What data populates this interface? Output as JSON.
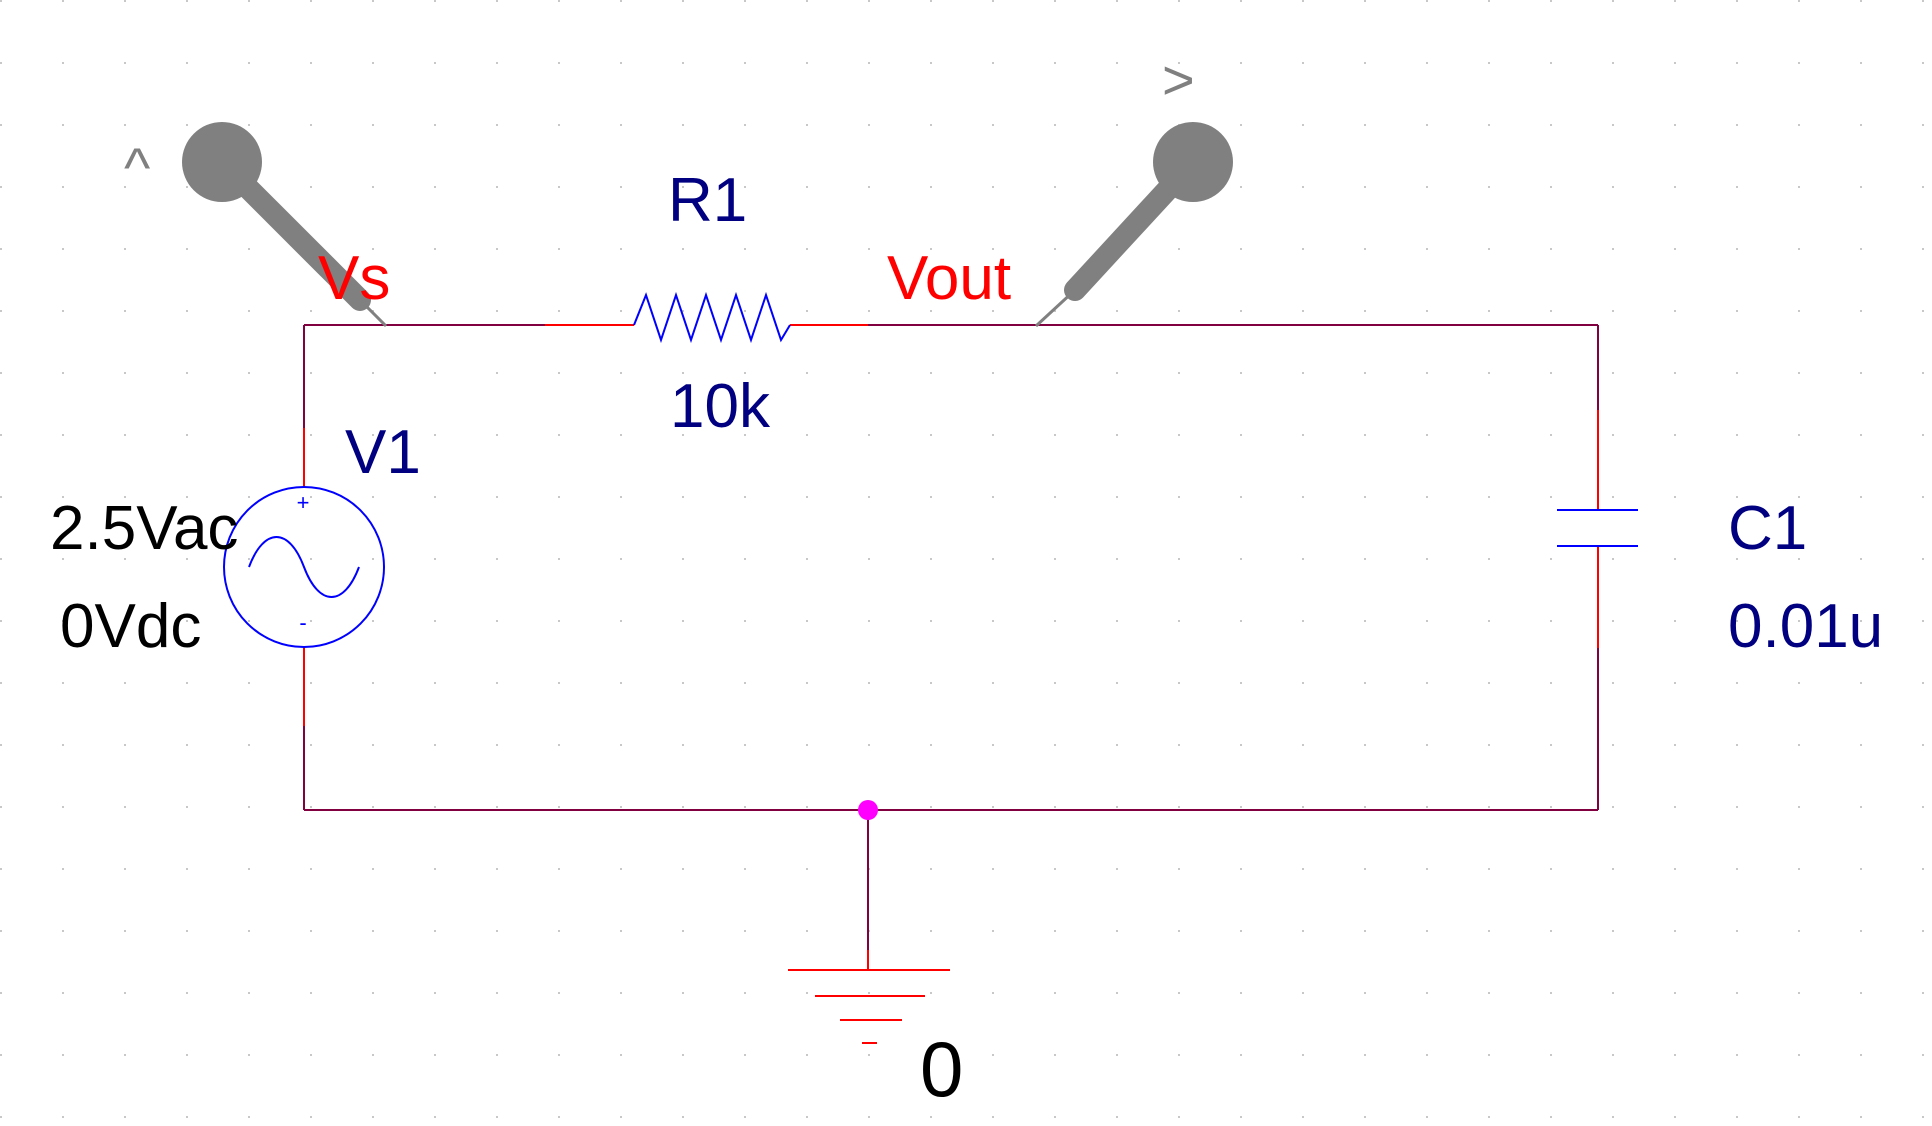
{
  "colors": {
    "wire": "#800040",
    "pin": "#ff0000",
    "part": "#0000ff",
    "part_label": "#000080",
    "net_label": "#ff0000",
    "probe": "#808080",
    "junction": "#ff00ff",
    "text": "#000000",
    "grid": "#c8c8c8"
  },
  "components": {
    "R1": {
      "ref": "R1",
      "value": "10k"
    },
    "C1": {
      "ref": "C1",
      "value": "0.01u"
    },
    "V1": {
      "ref": "V1",
      "ac": "2.5Vac",
      "dc": "0Vdc",
      "plus": "+",
      "minus": "-"
    }
  },
  "nets": {
    "vs": "Vs",
    "vout": "Vout",
    "ground": "0"
  },
  "probes": {
    "vs_marker": "^",
    "vout_marker": ">"
  },
  "icons": {
    "probe": "voltage-probe-icon",
    "ground": "ground-icon",
    "source": "ac-source-icon"
  }
}
